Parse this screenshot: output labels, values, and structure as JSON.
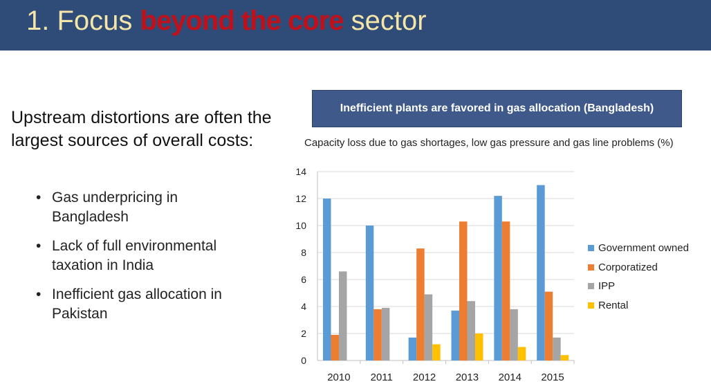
{
  "header": {
    "title_part1": "1. Focus ",
    "title_highlight": "beyond the core",
    "title_part2": " sector"
  },
  "left": {
    "lead": "Upstream distortions are often the largest sources of overall costs:",
    "bullets": [
      "Gas underpricing in Bangladesh",
      "Lack of full environmental taxation in India",
      "Inefficient gas allocation in Pakistan"
    ]
  },
  "chart_box": {
    "label": "Inefficient plants are favored in gas allocation (Bangladesh)"
  },
  "chart_data": {
    "type": "bar",
    "title": "Capacity loss due to gas shortages, low gas pressure and gas line problems (%)",
    "categories": [
      "2010",
      "2011",
      "2012",
      "2013",
      "2014",
      "2015"
    ],
    "ylim": [
      0,
      14
    ],
    "yticks": [
      0,
      2,
      4,
      6,
      8,
      10,
      12,
      14
    ],
    "grid": true,
    "legend_position": "right",
    "series": [
      {
        "name": "Government owned",
        "color": "#5b9bd5",
        "values": [
          12,
          10,
          1.7,
          3.7,
          12.2,
          13
        ]
      },
      {
        "name": "Corporatized",
        "color": "#ed7d31",
        "values": [
          1.9,
          3.8,
          8.3,
          10.3,
          10.3,
          5.1
        ]
      },
      {
        "name": "IPP",
        "color": "#a5a5a5",
        "values": [
          6.6,
          3.9,
          4.9,
          4.4,
          3.8,
          1.7
        ]
      },
      {
        "name": "Rental",
        "color": "#ffc000",
        "values": [
          0,
          0,
          1.2,
          2.0,
          1.0,
          0.4
        ]
      }
    ]
  }
}
